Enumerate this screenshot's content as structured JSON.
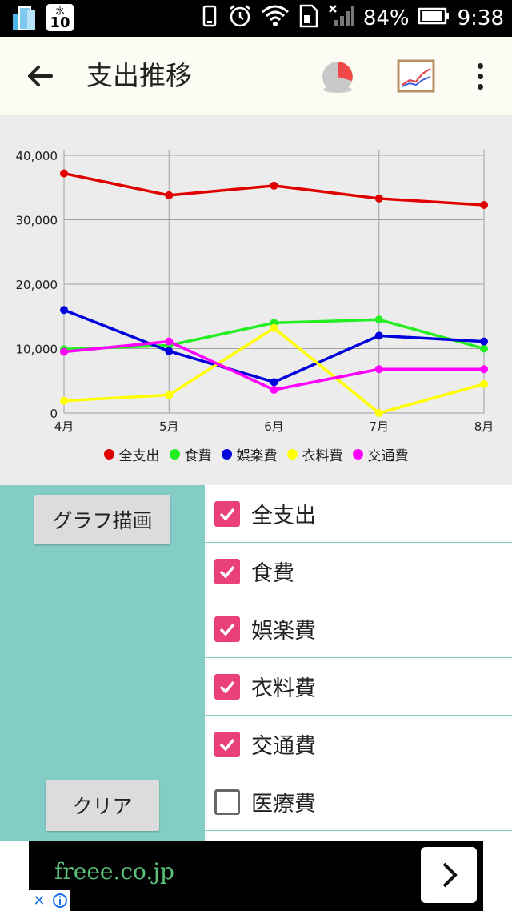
{
  "status_bar": {
    "calendar_day": "水",
    "calendar_date": "10",
    "battery": "84%",
    "time": "9:38"
  },
  "toolbar": {
    "title": "支出推移",
    "back_icon": "arrow-left-icon",
    "pie_icon": "pie-chart-icon",
    "line_icon": "line-chart-icon",
    "menu_icon": "more-vert-icon"
  },
  "chart_data": {
    "type": "line",
    "categories": [
      "4月",
      "5月",
      "6月",
      "7月",
      "8月"
    ],
    "ylim": [
      0,
      40000
    ],
    "yticks": [
      "0",
      "10,000",
      "20,000",
      "30,000",
      "40,000"
    ],
    "title": "",
    "xlabel": "",
    "ylabel": "",
    "grid": true,
    "legend_position": "bottom",
    "series": [
      {
        "name": "全支出",
        "color": "#e00000",
        "values": [
          37200,
          33800,
          35300,
          33300,
          32300
        ]
      },
      {
        "name": "食費",
        "color": "#22ee22",
        "values": [
          9900,
          10500,
          14000,
          14500,
          10000
        ]
      },
      {
        "name": "娯楽費",
        "color": "#0000dd",
        "values": [
          16000,
          9600,
          4800,
          12000,
          11100
        ]
      },
      {
        "name": "衣料費",
        "color": "#ffff00",
        "values": [
          1900,
          2800,
          13200,
          0,
          4500
        ]
      },
      {
        "name": "交通費",
        "color": "#ff00ff",
        "values": [
          9500,
          11100,
          3600,
          6800,
          6800
        ]
      }
    ]
  },
  "buttons": {
    "draw": "グラフ描画",
    "clear": "クリア"
  },
  "categories": [
    {
      "label": "全支出",
      "checked": true
    },
    {
      "label": "食費",
      "checked": true
    },
    {
      "label": "娯楽費",
      "checked": true
    },
    {
      "label": "衣料費",
      "checked": true
    },
    {
      "label": "交通費",
      "checked": true
    },
    {
      "label": "医療費",
      "checked": false
    }
  ],
  "ad": {
    "text": "freee.co.jp"
  }
}
